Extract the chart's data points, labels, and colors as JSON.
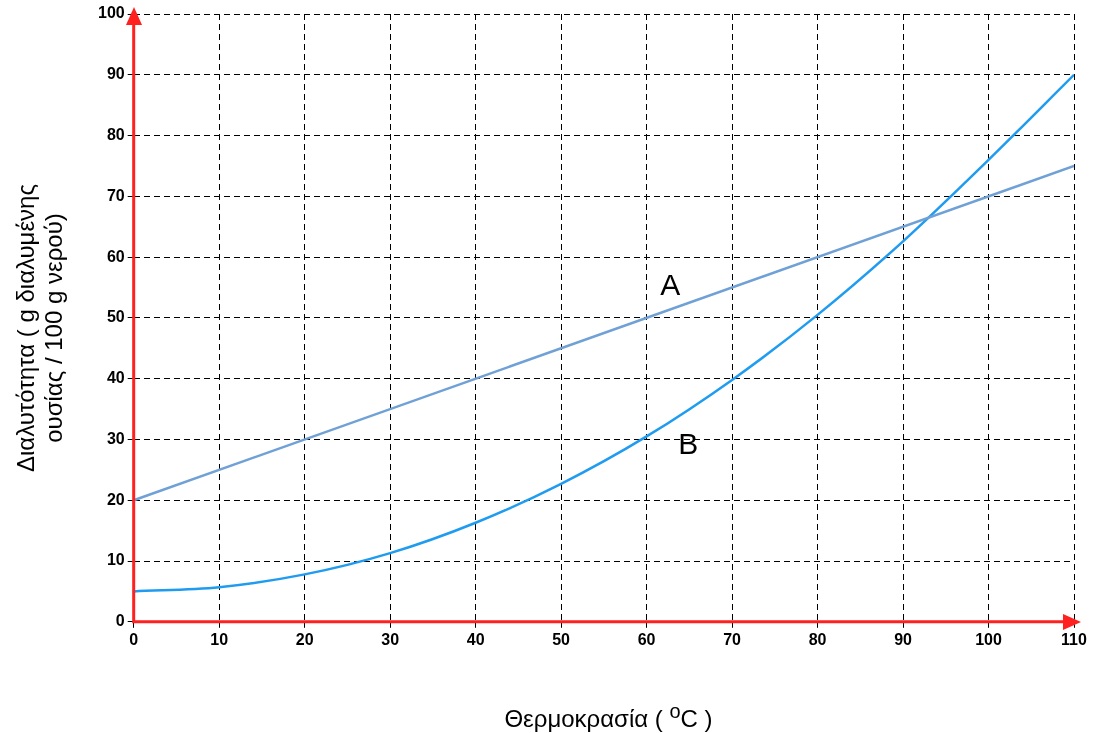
{
  "chart_data": {
    "type": "line",
    "xlabel": "Θερμοκρασία ( $^{o}$C )",
    "ylabel": "Διαλυτότητα ( g διαλυμένης ουσίας / 100 g νερού)",
    "xlim": [
      0,
      110
    ],
    "xticks": [
      0,
      10,
      20,
      30,
      40,
      50,
      60,
      70,
      80,
      90,
      100,
      110
    ],
    "ylim": [
      0,
      100
    ],
    "yticks": [
      0,
      10,
      20,
      30,
      40,
      50,
      60,
      70,
      80,
      90,
      100
    ],
    "grid": true,
    "legend": false,
    "marker": "none",
    "line_style": "solid",
    "series": [
      {
        "name": "A",
        "color": "#6fa0d6",
        "x": [
          0,
          110
        ],
        "values": [
          20,
          75
        ]
      },
      {
        "name": "B",
        "color": "#1f9cf0",
        "x": [
          0,
          10,
          20,
          30,
          40,
          50,
          60,
          70,
          80,
          90,
          100,
          110
        ],
        "values": [
          5,
          5.7,
          7.8,
          11.3,
          16.3,
          22.7,
          30.5,
          39.8,
          50.5,
          62.6,
          76,
          90
        ]
      }
    ]
  }
}
